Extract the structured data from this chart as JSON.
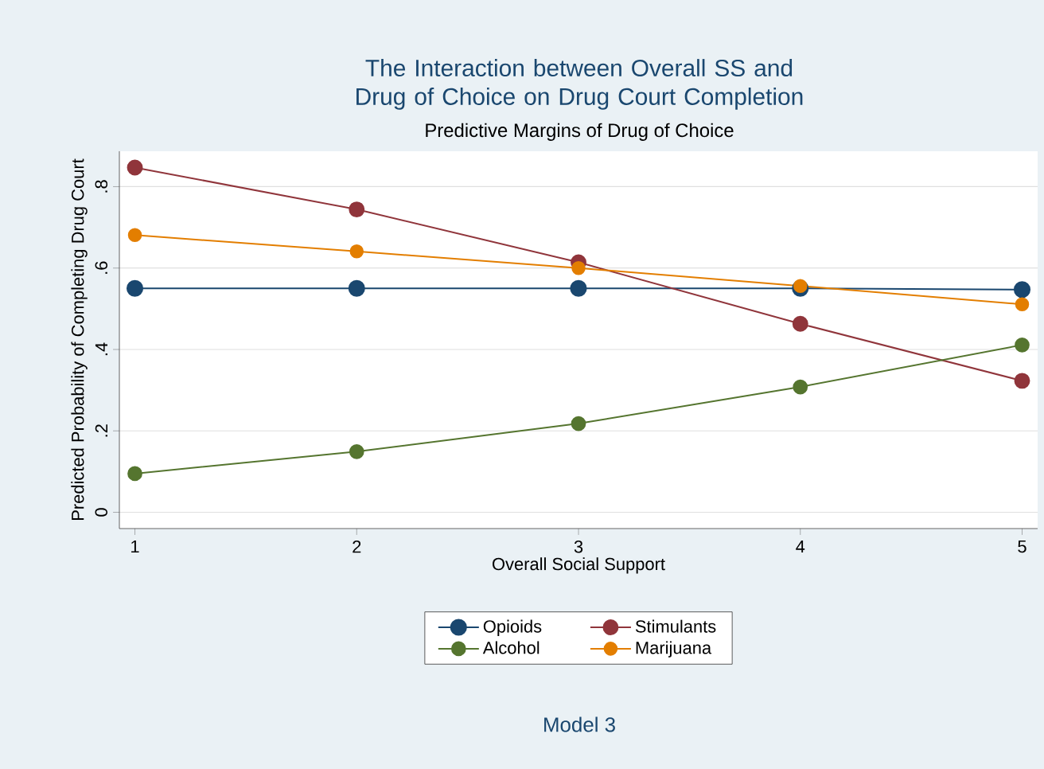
{
  "chart_data": {
    "type": "line",
    "title": "The Interaction between Overall SS and Drug of Choice on Drug Court Completion",
    "subtitle": "Predictive Margins of Drug of Choice",
    "xlabel": "Overall Social Support",
    "ylabel": "Predicted Probability of Completing Drug Court",
    "annotations": [
      "Model 3"
    ],
    "x": [
      1,
      2,
      3,
      4,
      5
    ],
    "series": [
      {
        "name": "Opioids",
        "color": "#1a476f",
        "values": [
          0.55,
          0.55,
          0.55,
          0.55,
          0.547
        ]
      },
      {
        "name": "Stimulants",
        "color": "#90353b",
        "values": [
          0.847,
          0.744,
          0.614,
          0.463,
          0.323
        ]
      },
      {
        "name": "Alcohol",
        "color": "#55752f",
        "values": [
          0.095,
          0.149,
          0.218,
          0.308,
          0.411
        ]
      },
      {
        "name": "Marijuana",
        "color": "#e37e00",
        "values": [
          0.681,
          0.641,
          0.6,
          0.556,
          0.511
        ]
      }
    ],
    "xlim": [
      0.93,
      5.07
    ],
    "xticks": [
      1,
      2,
      3,
      4,
      5
    ],
    "ylim": [
      -0.04,
      0.887
    ],
    "yticks": [
      0,
      {
        "value": 0.2,
        "label": ".2"
      },
      {
        "value": 0.4,
        "label": ".4"
      },
      {
        "value": 0.6,
        "label": ".6"
      },
      {
        "value": 0.8,
        "label": ".8"
      }
    ],
    "grid": "y",
    "legend": "bottom",
    "marker": "circle",
    "line_style": "solid"
  }
}
